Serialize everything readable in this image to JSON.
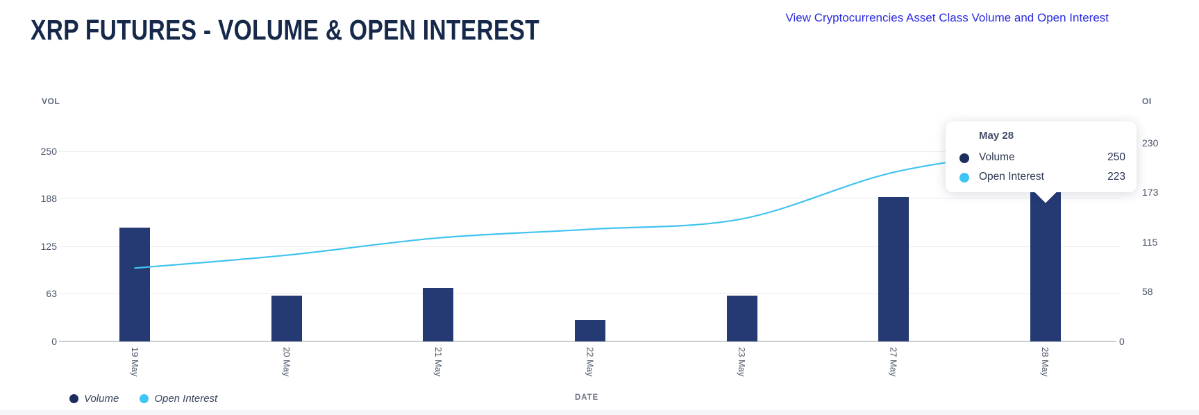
{
  "header": {
    "title": "XRP FUTURES - VOLUME & OPEN INTEREST",
    "link_text": "View Cryptocurrencies Asset Class Volume and Open Interest"
  },
  "chart_data": {
    "type": "bar",
    "subtype": "bar+line dual axis",
    "categories": [
      "19 May",
      "20 May",
      "21 May",
      "22 May",
      "23 May",
      "27 May",
      "28 May"
    ],
    "series": [
      {
        "name": "Volume",
        "type": "bar",
        "axis": "left",
        "color": "#253a73",
        "values": [
          150,
          60,
          70,
          28,
          60,
          190,
          250
        ]
      },
      {
        "name": "Open Interest",
        "type": "line",
        "axis": "right",
        "color": "#41c3f0",
        "values": [
          85,
          100,
          120,
          130,
          142,
          196,
          223
        ]
      }
    ],
    "left_axis": {
      "label": "VOL",
      "ticks": [
        0,
        63,
        125,
        188,
        250
      ],
      "max": 250
    },
    "right_axis": {
      "label": "OI",
      "ticks": [
        0,
        58,
        115,
        173,
        230
      ],
      "max": 230
    },
    "x_axis_label": "DATE",
    "grid": true,
    "legend_position": "bottom-left"
  },
  "tooltip": {
    "title": "May 28",
    "rows": [
      {
        "label": "Volume",
        "value": "250",
        "color": "#1e2d5d"
      },
      {
        "label": "Open Interest",
        "value": "223",
        "color": "#3ec5f5"
      }
    ]
  },
  "colors": {
    "bar": "#253a73",
    "line": "#41c3f0",
    "title": "#16294a",
    "link": "#2b2be2",
    "tick_text": "#4a5469",
    "gridline": "#ededf0"
  }
}
